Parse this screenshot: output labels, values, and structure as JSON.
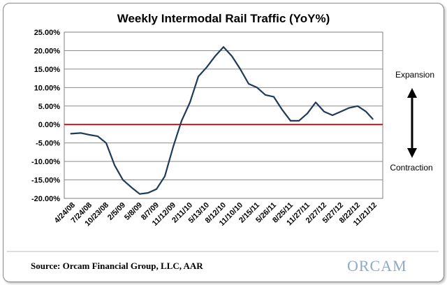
{
  "chart_data": {
    "type": "line",
    "title": "Weekly Intermodal Rail Traffic (YoY%)",
    "xlabel": "",
    "ylabel": "",
    "ylim": [
      -20,
      25
    ],
    "yticks": [
      "25.00%",
      "20.00%",
      "15.00%",
      "10.00%",
      "5.00%",
      "0.00%",
      "-5.00%",
      "-10.00%",
      "-15.00%",
      "-20.00%"
    ],
    "ytick_values": [
      25,
      20,
      15,
      10,
      5,
      0,
      -5,
      -10,
      -15,
      -20
    ],
    "xticks": [
      "4/24/08",
      "7/24/08",
      "10/23/08",
      "2/5/09",
      "5/8/09",
      "8/7/09",
      "11/12/09",
      "2/11/10",
      "5/13/10",
      "8/12/10",
      "11/10/10",
      "2/15/11",
      "5/26/11",
      "8/25/11",
      "11/27/11",
      "2/27/12",
      "5/27/12",
      "8/22/12",
      "11/21/12"
    ],
    "grid": "horizontal",
    "series": [
      {
        "color": "#1f3b5a",
        "x": [
          0.4,
          1.0,
          1.5,
          2.0,
          2.5,
          3.0,
          3.5,
          4.0,
          4.5,
          5.0,
          5.5,
          6.0,
          6.5,
          7.0,
          7.5,
          8.0,
          8.5,
          9.0,
          9.5,
          10.0,
          10.5,
          11.0,
          11.5,
          12.0,
          12.5,
          13.0,
          13.5,
          14.0,
          14.5,
          15.0,
          15.5,
          16.0,
          16.5,
          17.0,
          17.5,
          18.0,
          18.4
        ],
        "values": [
          -2.5,
          -2.3,
          -2.8,
          -3.2,
          -5.0,
          -11.0,
          -15.0,
          -17.0,
          -18.8,
          -18.5,
          -17.5,
          -14.0,
          -6.0,
          1.0,
          6.0,
          13.0,
          15.5,
          18.5,
          21.0,
          18.5,
          15.0,
          11.0,
          10.0,
          8.0,
          7.5,
          4.0,
          1.0,
          1.0,
          3.0,
          6.0,
          3.5,
          2.5,
          3.5,
          4.5,
          5.0,
          3.5,
          1.5
        ]
      }
    ],
    "reference_line": {
      "value": 0,
      "color": "#c00000"
    }
  },
  "annotations": {
    "expansion": "Expansion",
    "contraction": "Contraction"
  },
  "footer": {
    "source": "Source: Orcam Financial Group, LLC, AAR",
    "logo": "ORCAM"
  }
}
